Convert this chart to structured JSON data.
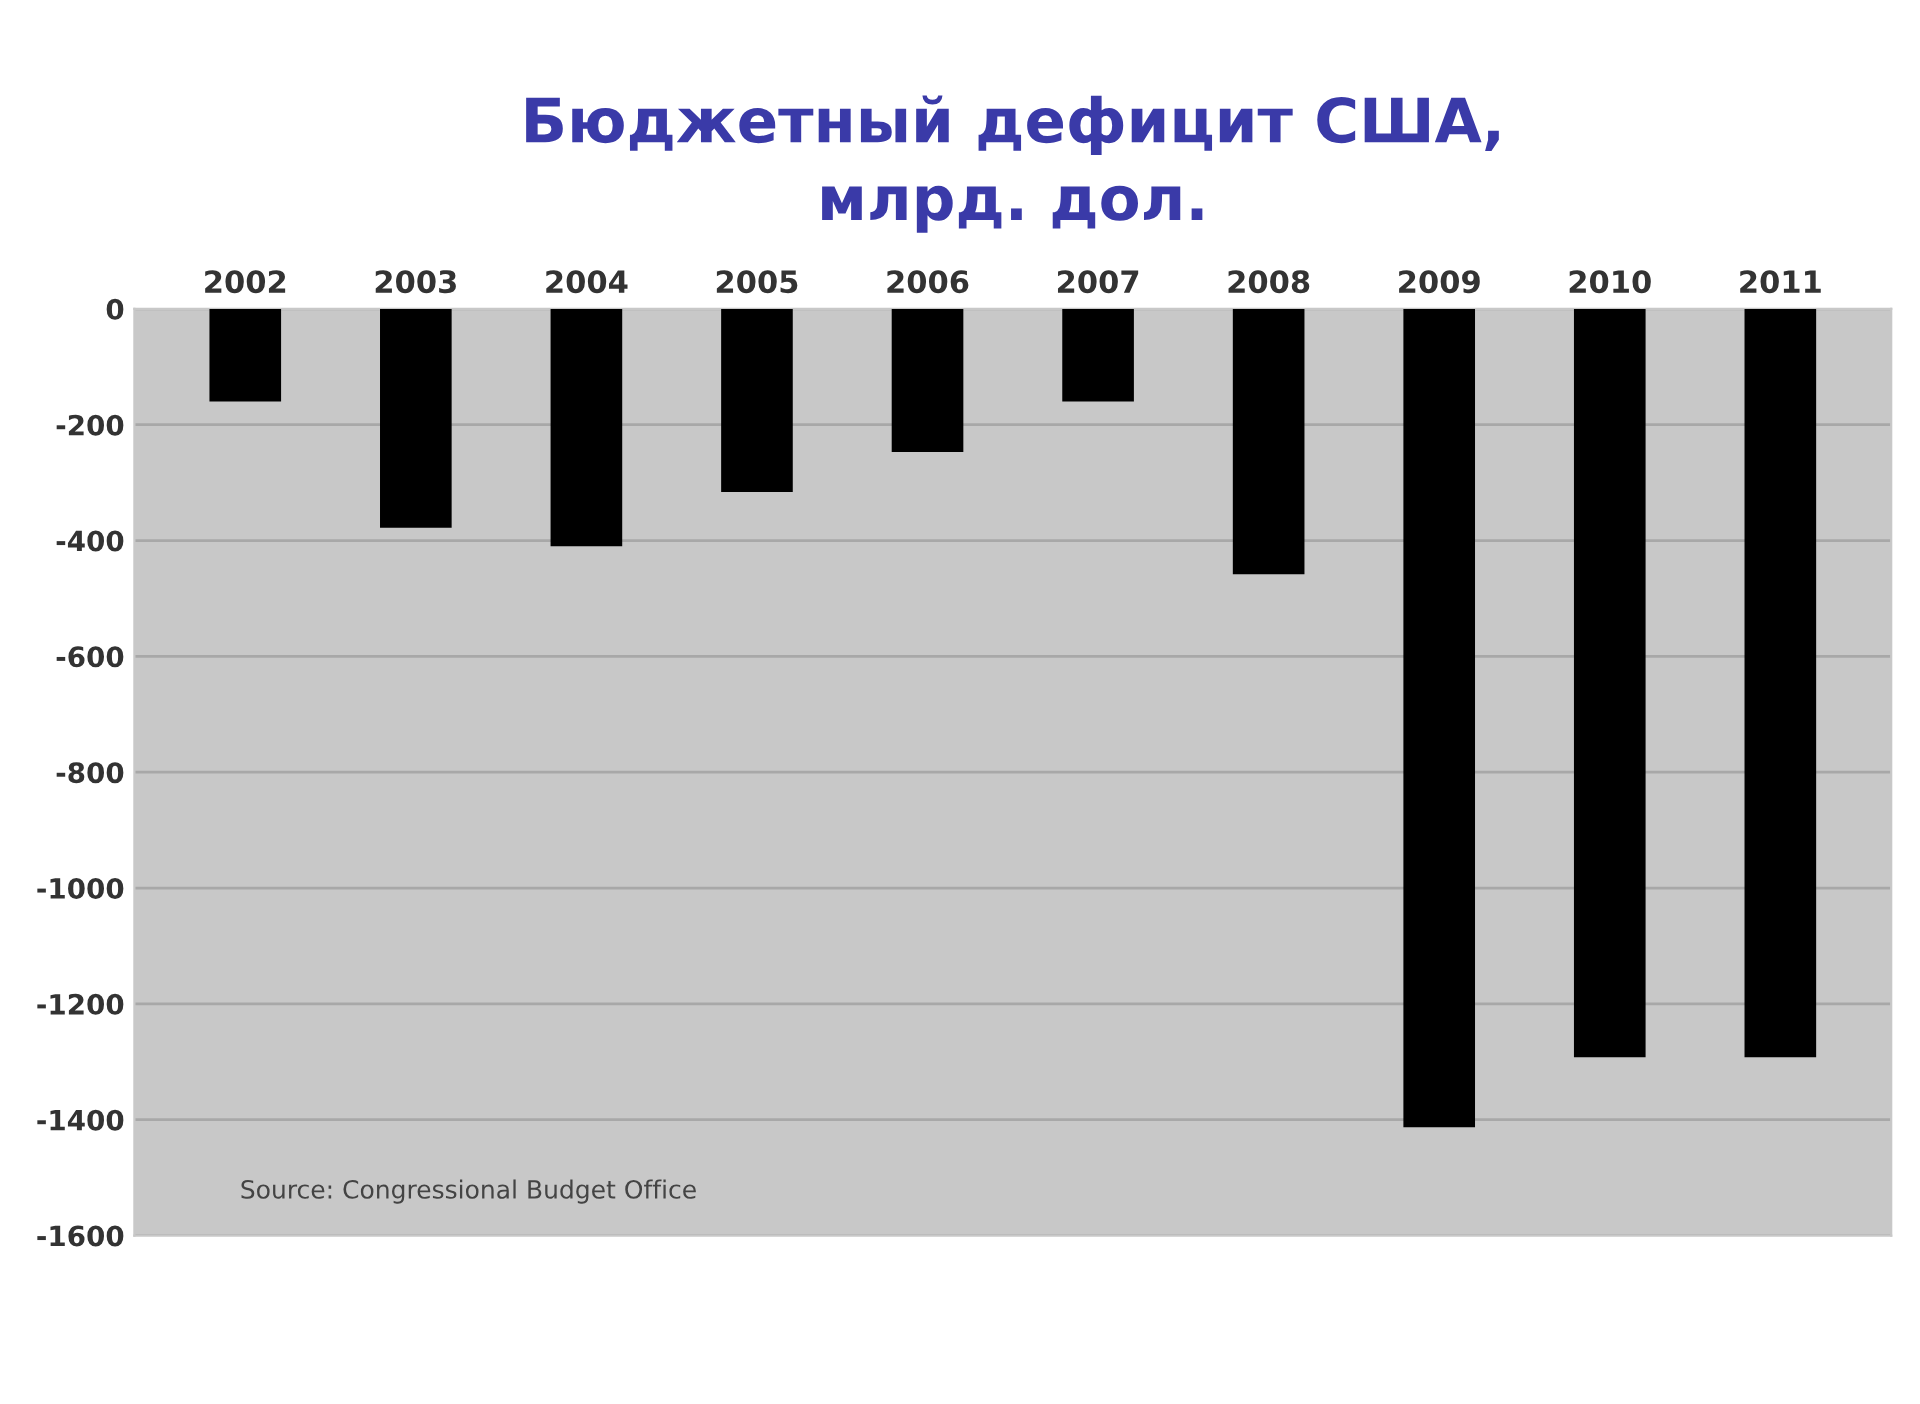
{
  "chart_data": {
    "type": "bar",
    "title": "Бюджетный дефицит США,\nмлрд. дол.",
    "categories": [
      "2002",
      "2003",
      "2004",
      "2005",
      "2006",
      "2007",
      "2008",
      "2009",
      "2010",
      "2011"
    ],
    "values": [
      -160,
      -378,
      -410,
      -316,
      -247,
      -160,
      -458,
      -1413,
      -1292,
      -1292
    ],
    "color": "#000000",
    "ylim": [
      -1600,
      0
    ],
    "yticks": [
      0,
      -200,
      -400,
      -600,
      -800,
      -1000,
      -1200,
      -1400,
      -1600
    ],
    "grid": "y",
    "legend": false,
    "annotations": [
      "Source: Congressional Budget Office"
    ]
  }
}
